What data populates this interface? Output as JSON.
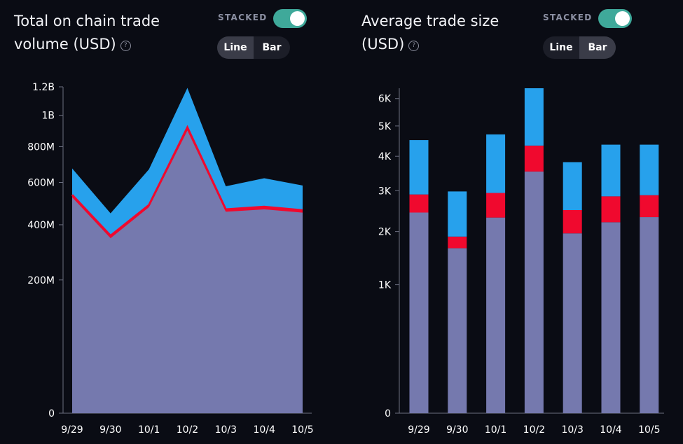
{
  "colors": {
    "background": "#0a0c14",
    "base": "#7579ae",
    "middle": "#f0092e",
    "top": "#27a1ec",
    "toggle_on": "#3fa99a",
    "axis": "#6c6f80"
  },
  "left_panel": {
    "title": "Total on chain trade volume (USD)",
    "help_icon": "question-circle-icon",
    "stacked_label": "STACKED",
    "stacked_on": true,
    "tabs": [
      "Line",
      "Bar"
    ],
    "active_tab": "Line"
  },
  "right_panel": {
    "title": "Average trade size (USD)",
    "help_icon": "question-circle-icon",
    "stacked_label": "STACKED",
    "stacked_on": true,
    "tabs": [
      "Line",
      "Bar"
    ],
    "active_tab": "Bar"
  },
  "chart_data": [
    {
      "type": "area",
      "stacked": true,
      "y_scale": "sqrt",
      "ylim": [
        0,
        1200000000
      ],
      "categories": [
        "9/29",
        "9/30",
        "10/1",
        "10/2",
        "10/3",
        "10/4",
        "10/5"
      ],
      "yticks": [
        {
          "value": 0,
          "label": "0"
        },
        {
          "value": 200000000,
          "label": "200M"
        },
        {
          "value": 400000000,
          "label": "400M"
        },
        {
          "value": 600000000,
          "label": "600M"
        },
        {
          "value": 800000000,
          "label": "800M"
        },
        {
          "value": 1000000000,
          "label": "1B"
        },
        {
          "value": 1200000000,
          "label": "1.2B"
        }
      ],
      "series": [
        {
          "color": "#7579ae",
          "values": [
            525000000,
            345000000,
            478000000,
            900000000,
            457000000,
            468000000,
            453000000
          ]
        },
        {
          "color": "#f0092e",
          "values": [
            12000000,
            10000000,
            10000000,
            20000000,
            11000000,
            12000000,
            11000000
          ]
        },
        {
          "color": "#27a1ec",
          "values": [
            138000000,
            95000000,
            182000000,
            272000000,
            112000000,
            142000000,
            120000000
          ]
        }
      ]
    },
    {
      "type": "bar",
      "stacked": true,
      "y_scale": "sqrt",
      "ylim": [
        0,
        6400
      ],
      "categories": [
        "9/29",
        "9/30",
        "10/1",
        "10/2",
        "10/3",
        "10/4",
        "10/5"
      ],
      "yticks": [
        {
          "value": 0,
          "label": "0"
        },
        {
          "value": 1000,
          "label": "1K"
        },
        {
          "value": 2000,
          "label": "2K"
        },
        {
          "value": 3000,
          "label": "3K"
        },
        {
          "value": 4000,
          "label": "4K"
        },
        {
          "value": 5000,
          "label": "5K"
        },
        {
          "value": 6000,
          "label": "6K"
        }
      ],
      "series": [
        {
          "color": "#7579ae",
          "values": [
            2440,
            1650,
            2320,
            3540,
            1960,
            2210,
            2330
          ]
        },
        {
          "color": "#f0092e",
          "values": [
            460,
            240,
            620,
            800,
            540,
            640,
            550
          ]
        },
        {
          "color": "#27a1ec",
          "values": [
            1620,
            1090,
            1770,
            2060,
            1320,
            1520,
            1490
          ]
        }
      ]
    }
  ]
}
